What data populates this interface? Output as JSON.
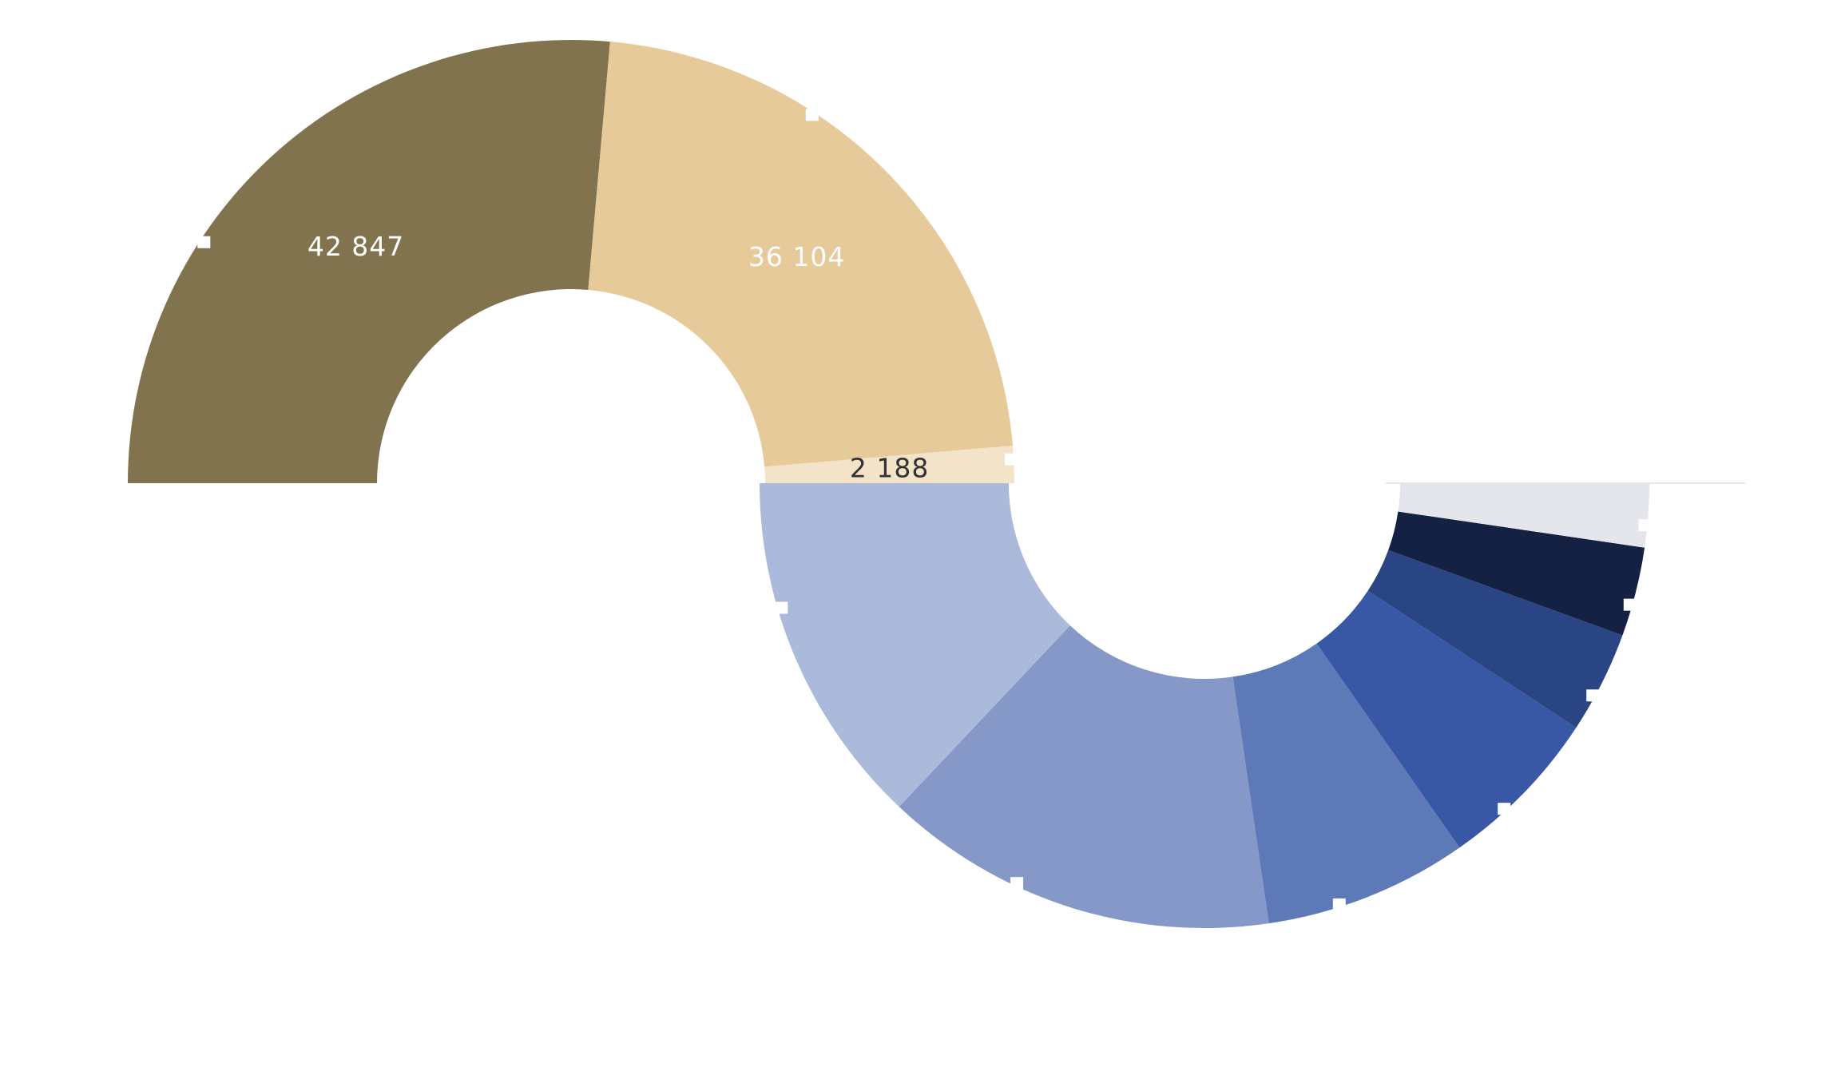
{
  "chart_data": [
    {
      "type": "pie",
      "variant": "half-donut-upper",
      "values": [
        42847,
        36104,
        2188
      ],
      "labels": [
        "42 847",
        "36 104",
        "2 188"
      ],
      "colors": [
        "#82734f",
        "#e7ca99",
        "#f3e4c9"
      ],
      "label_colors": [
        "#ffffff",
        "#ffffff",
        "#333333"
      ]
    },
    {
      "type": "pie",
      "variant": "half-donut-lower",
      "values": [
        28,
        31,
        16,
        13,
        8,
        7,
        5
      ],
      "colors": [
        "#abbadb",
        "#8598c8",
        "#5d79b7",
        "#3857a4",
        "#2a4584",
        "#142143",
        "#e4e6ec"
      ]
    }
  ]
}
